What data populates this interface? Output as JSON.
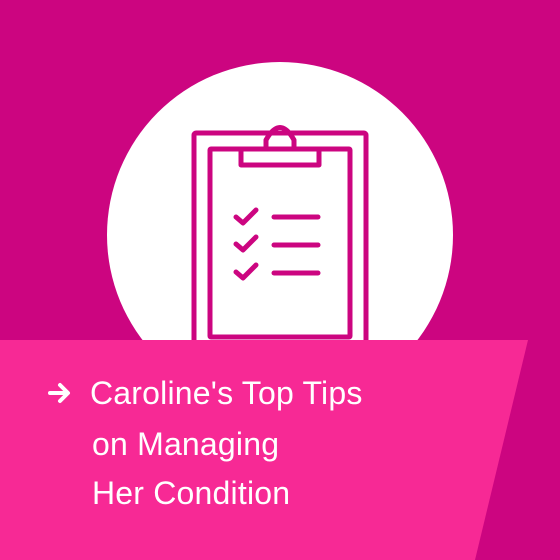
{
  "card": {
    "background_color": "#cc0580",
    "banner_color": "#f72995",
    "circle_color": "#ffffff",
    "icon_color": "#cc0580",
    "icon": "clipboard-checklist-icon",
    "arrow_icon": "arrow-right-icon",
    "title_lines": [
      "Caroline's Top Tips",
      "on Managing",
      "Her Condition"
    ]
  }
}
